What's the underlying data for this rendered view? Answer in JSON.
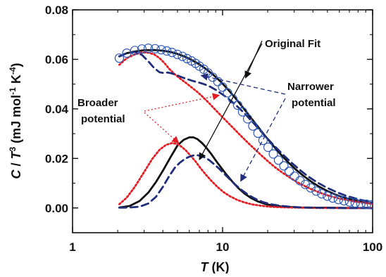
{
  "chart_data": {
    "type": "line",
    "x_scale": "log",
    "xlim": [
      1,
      100
    ],
    "ylim": [
      -0.01,
      0.08
    ],
    "grid": false,
    "xlabel": {
      "italic": "T",
      "normal": " (K)"
    },
    "ylabel": {
      "parts": [
        "C",
        " / ",
        "T",
        "3",
        "  (mJ mol",
        "-1",
        " K",
        "-4",
        ")"
      ]
    },
    "x_ticks": [
      {
        "value": 1,
        "label": "1"
      },
      {
        "value": 10,
        "label": "10"
      },
      {
        "value": 100,
        "label": "100"
      }
    ],
    "y_ticks": [
      {
        "value": 0.0,
        "label": "0.00"
      },
      {
        "value": 0.02,
        "label": "0.02"
      },
      {
        "value": 0.04,
        "label": "0.04"
      },
      {
        "value": 0.06,
        "label": "0.06"
      },
      {
        "value": 0.08,
        "label": "0.08"
      }
    ],
    "x_minor_ticks": [
      2,
      3,
      4,
      5,
      6,
      7,
      8,
      9,
      20,
      30,
      40,
      50,
      60,
      70,
      80,
      90
    ],
    "y_minor_step": 0.01,
    "data_points": {
      "color": "#2f57b6",
      "x": [
        2.05,
        2.3,
        2.6,
        2.9,
        3.2,
        3.55,
        3.9,
        4.25,
        4.6,
        5.0,
        5.4,
        5.8,
        6.2,
        6.6,
        7.0,
        7.5,
        8.0,
        8.6,
        9.3,
        10.0,
        10.8,
        11.7,
        12.6,
        13.6,
        14.7,
        15.9,
        17.2,
        18.6,
        20.1,
        21.8,
        23.6,
        25.6,
        27.8,
        30.2,
        32.8,
        35.6,
        38.7,
        42.1,
        45.8,
        49.9,
        54.3,
        59.2,
        64.5,
        70.3,
        76.6,
        83.5,
        91.0,
        98.5
      ],
      "y": [
        0.0605,
        0.0625,
        0.0636,
        0.0642,
        0.0645,
        0.0643,
        0.0639,
        0.0634,
        0.0628,
        0.062,
        0.0612,
        0.0603,
        0.0594,
        0.0584,
        0.0573,
        0.056,
        0.0545,
        0.0528,
        0.051,
        0.0488,
        0.0465,
        0.044,
        0.0415,
        0.0388,
        0.036,
        0.0331,
        0.0302,
        0.0273,
        0.0245,
        0.0218,
        0.0193,
        0.017,
        0.0148,
        0.0128,
        0.011,
        0.0095,
        0.0081,
        0.0068,
        0.0057,
        0.0048,
        0.004,
        0.0034,
        0.0029,
        0.0024,
        0.002,
        0.0017,
        0.0015,
        0.0013
      ]
    },
    "series": [
      {
        "role": "original-fit-upper",
        "style": "solid",
        "color": "#111111",
        "x": [
          2.05,
          2.3,
          2.6,
          3.0,
          3.5,
          4.0,
          4.5,
          5.0,
          5.6,
          6.2,
          7.0,
          7.8,
          8.7,
          9.7,
          10.8,
          12.0,
          13.5,
          15.0,
          17.0,
          19.0,
          21.5,
          24.0,
          27.0,
          30.5,
          34.5,
          39.0,
          44.0,
          50.0,
          57.0,
          65.0,
          74.0,
          84.0,
          95.0,
          100
        ],
        "y": [
          0.0612,
          0.0625,
          0.0632,
          0.0637,
          0.0638,
          0.0635,
          0.063,
          0.0622,
          0.0611,
          0.0598,
          0.058,
          0.056,
          0.0537,
          0.051,
          0.048,
          0.0448,
          0.041,
          0.0374,
          0.0332,
          0.0294,
          0.0255,
          0.0221,
          0.0188,
          0.0157,
          0.013,
          0.0106,
          0.0086,
          0.0068,
          0.0053,
          0.0041,
          0.0032,
          0.0025,
          0.002,
          0.0018
        ]
      },
      {
        "role": "original-fit-lower",
        "style": "solid",
        "color": "#111111",
        "x": [
          2.05,
          2.4,
          2.8,
          3.2,
          3.6,
          4.0,
          4.5,
          5.0,
          5.5,
          6.0,
          6.4,
          6.8,
          7.3,
          7.8,
          8.4,
          9.0,
          9.8,
          10.7,
          11.7,
          12.8,
          14.0,
          15.5,
          17.2,
          19.2,
          21.5,
          24.5,
          28.0,
          33.0,
          40.0,
          50.0,
          65.0,
          80.0,
          100
        ],
        "y": [
          0.0002,
          0.0008,
          0.0028,
          0.0062,
          0.0105,
          0.015,
          0.0205,
          0.0252,
          0.0275,
          0.0285,
          0.0285,
          0.0278,
          0.0262,
          0.0243,
          0.0218,
          0.0192,
          0.0162,
          0.0132,
          0.0104,
          0.0079,
          0.0058,
          0.004,
          0.0026,
          0.0016,
          0.001,
          0.0006,
          0.0004,
          0.0002,
          0.0001,
          0.0001,
          0.0,
          0.0,
          0.0
        ]
      },
      {
        "role": "broader-upper",
        "style": "dotted",
        "color": "#e21d24",
        "x": [
          2.05,
          2.3,
          2.6,
          2.9,
          3.2,
          3.5,
          3.8,
          4.1,
          4.4,
          4.8,
          5.2,
          5.7,
          6.2,
          6.8,
          7.4,
          8.1,
          8.9,
          9.8,
          10.8,
          11.9,
          13.2,
          14.6,
          16.2,
          18.0,
          20.0,
          22.5,
          25.5,
          29.0,
          33.0,
          38.0,
          44.0,
          51.0,
          60.0,
          72.0,
          86.0,
          100
        ],
        "y": [
          0.0578,
          0.0605,
          0.062,
          0.0628,
          0.0627,
          0.062,
          0.0605,
          0.0585,
          0.0562,
          0.054,
          0.0523,
          0.0505,
          0.0487,
          0.0468,
          0.0448,
          0.0424,
          0.0398,
          0.0372,
          0.0346,
          0.032,
          0.0292,
          0.0266,
          0.024,
          0.0214,
          0.0189,
          0.0163,
          0.0139,
          0.0117,
          0.0097,
          0.0079,
          0.0063,
          0.0049,
          0.0038,
          0.0028,
          0.0021,
          0.0017
        ]
      },
      {
        "role": "broader-lower",
        "style": "dotted",
        "color": "#e21d24",
        "x": [
          2.05,
          2.3,
          2.6,
          3.0,
          3.4,
          3.8,
          4.2,
          4.6,
          5.0,
          5.3,
          5.7,
          6.1,
          6.6,
          7.1,
          7.7,
          8.4,
          9.2,
          10.1,
          11.2,
          12.5,
          14.0,
          15.8,
          18.0,
          20.5,
          24.0,
          28.0,
          34.0,
          42.0,
          55.0,
          70.0,
          100
        ],
        "y": [
          0.0015,
          0.0042,
          0.0085,
          0.0145,
          0.0198,
          0.0235,
          0.0255,
          0.0262,
          0.0258,
          0.0248,
          0.0232,
          0.0212,
          0.0188,
          0.0162,
          0.0136,
          0.011,
          0.0086,
          0.0065,
          0.0047,
          0.0033,
          0.0022,
          0.0014,
          0.0009,
          0.0005,
          0.0003,
          0.0002,
          0.0001,
          0.0,
          0.0,
          0.0,
          0.0
        ]
      },
      {
        "role": "narrower-upper",
        "style": "dashed",
        "color": "#1f2d7a",
        "x": [
          2.05,
          2.3,
          2.6,
          2.9,
          3.2,
          3.5,
          3.8,
          4.05,
          4.3,
          4.6,
          5.0,
          5.4,
          5.9,
          6.4,
          7.0,
          7.6,
          8.3,
          9.0,
          9.8,
          10.8,
          11.8,
          13.0,
          14.3,
          15.8,
          17.5,
          19.5,
          22.0,
          25.0,
          28.5,
          32.5,
          37.0,
          42.5,
          49.0,
          57.0,
          66.0,
          77.0,
          90.0,
          100
        ],
        "y": [
          0.0612,
          0.0625,
          0.063,
          0.0618,
          0.0592,
          0.0565,
          0.0548,
          0.0545,
          0.0547,
          0.0543,
          0.0535,
          0.0527,
          0.0519,
          0.0512,
          0.0506,
          0.0499,
          0.0489,
          0.0477,
          0.0462,
          0.0444,
          0.0424,
          0.0401,
          0.0376,
          0.0348,
          0.0318,
          0.0286,
          0.0252,
          0.0218,
          0.0185,
          0.0155,
          0.0128,
          0.0104,
          0.0083,
          0.0065,
          0.005,
          0.0038,
          0.0028,
          0.0022
        ]
      },
      {
        "role": "narrower-lower",
        "style": "dashed",
        "color": "#1f2d7a",
        "x": [
          2.05,
          2.4,
          2.8,
          3.2,
          3.6,
          4.0,
          4.4,
          4.8,
          5.2,
          5.6,
          6.0,
          6.4,
          6.8,
          7.2,
          7.7,
          8.2,
          8.8,
          9.5,
          10.3,
          11.2,
          12.2,
          13.4,
          14.8,
          16.5,
          18.5,
          21.0,
          24.0,
          28.0,
          34.0,
          42.0,
          55.0,
          70.0,
          100
        ],
        "y": [
          0.0001,
          0.0002,
          0.0005,
          0.0018,
          0.0045,
          0.0085,
          0.0128,
          0.0162,
          0.0183,
          0.0198,
          0.0207,
          0.0212,
          0.0213,
          0.021,
          0.0203,
          0.0192,
          0.0176,
          0.0158,
          0.0137,
          0.0115,
          0.0093,
          0.0072,
          0.0053,
          0.0037,
          0.0024,
          0.0015,
          0.0009,
          0.0005,
          0.0002,
          0.0001,
          0.0,
          0.0,
          0.0
        ]
      }
    ],
    "annotations": {
      "original_fit": "Original Fit",
      "broader": [
        "Broader",
        "potential"
      ],
      "narrower": [
        "Narrower",
        "potential"
      ]
    }
  }
}
